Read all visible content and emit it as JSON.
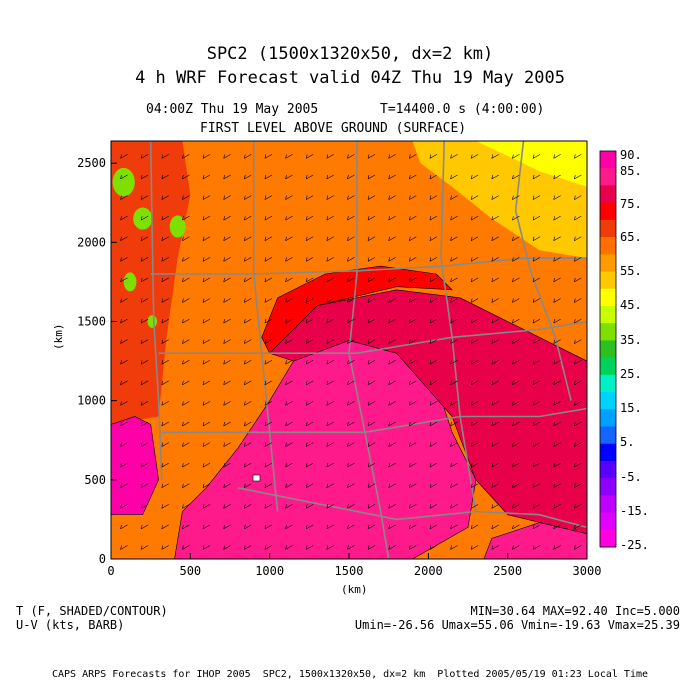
{
  "title": "SPC2 (1500x1320x50, dx=2 km)",
  "subtitle": "4 h WRF Forecast valid 04Z Thu 19 May 2005",
  "time_label": "04:00Z Thu 19 May 2005",
  "time_step": "T=14400.0 s (4:00:00)",
  "level_label": "FIRST LEVEL ABOVE GROUND (SURFACE)",
  "xlabel": "(km)",
  "ylabel": "(km)",
  "var1_label": "T (F, SHADED/CONTOUR)",
  "var2_label": "U-V (kts, BARB)",
  "stats_line1": "MIN=30.64 MAX=92.40 Inc=5.000",
  "stats_line2": "Umin=-26.56 Umax=55.06 Vmin=-19.63 Vmax=25.39",
  "footer": "CAPS ARPS Forecasts for IHOP 2005  SPC2, 1500x1320x50, dx=2 km  Plotted 2005/05/19 01:23 Local Time",
  "chart_data": {
    "type": "heatmap",
    "xlim": [
      0,
      3000
    ],
    "ylim": [
      0,
      2640
    ],
    "x_ticks": [
      0,
      500,
      1000,
      1500,
      2000,
      2500,
      3000
    ],
    "y_ticks": [
      0,
      500,
      1000,
      1500,
      2000,
      2500
    ],
    "x_tick_labels": [
      "0",
      "500",
      "1000",
      "1500",
      "2000",
      "2500",
      "3000"
    ],
    "y_tick_labels": [
      "0",
      "500",
      "1000",
      "1500",
      "2000",
      "2500"
    ],
    "colorbar": {
      "labels": [
        "90.",
        "85.",
        "75.",
        "65.",
        "55.",
        "45.",
        "35.",
        "25.",
        "15.",
        "5.",
        "-5.",
        "-15.",
        "-25."
      ],
      "colors": [
        "#ff00a8",
        "#ff1a8c",
        "#e8004a",
        "#ff0000",
        "#f03c0a",
        "#ff7000",
        "#ff9a00",
        "#ffc800",
        "#ffff00",
        "#c8ff00",
        "#7ee000",
        "#2cc020",
        "#00d25a",
        "#00f0c8",
        "#00d2ff",
        "#00a0ff",
        "#1464ff",
        "#0000ff",
        "#5a00ff",
        "#9000ff",
        "#c000ff",
        "#e000ff",
        "#ff00e0"
      ]
    },
    "regions": [
      {
        "value_band": "85-90",
        "color": "#ff1a8c",
        "polygon_km": [
          [
            1150,
            0
          ],
          [
            1900,
            0
          ],
          [
            2250,
            200
          ],
          [
            2300,
            500
          ],
          [
            2150,
            800
          ],
          [
            2050,
            1100
          ],
          [
            1800,
            1300
          ],
          [
            1500,
            1380
          ],
          [
            1150,
            1250
          ],
          [
            1000,
            1000
          ],
          [
            800,
            700
          ],
          [
            600,
            450
          ],
          [
            450,
            300
          ],
          [
            400,
            0
          ]
        ]
      },
      {
        "value_band": "85-90",
        "color": "#ff1a8c",
        "polygon_km": [
          [
            2350,
            0
          ],
          [
            3000,
            0
          ],
          [
            3000,
            160
          ],
          [
            2700,
            230
          ],
          [
            2400,
            130
          ]
        ]
      },
      {
        "value_band": "80-85",
        "color": "#ff00a8",
        "polygon_km": [
          [
            0,
            280
          ],
          [
            200,
            280
          ],
          [
            300,
            500
          ],
          [
            250,
            850
          ],
          [
            150,
            900
          ],
          [
            0,
            850
          ]
        ]
      },
      {
        "value_band": "75-80",
        "color": "#e8004a",
        "polygon_km": [
          [
            1000,
            1300
          ],
          [
            1300,
            1600
          ],
          [
            1800,
            1700
          ],
          [
            2200,
            1650
          ],
          [
            2600,
            1450
          ],
          [
            2900,
            1300
          ],
          [
            3000,
            1250
          ],
          [
            3000,
            160
          ],
          [
            2500,
            280
          ],
          [
            2300,
            500
          ],
          [
            2150,
            900
          ],
          [
            1800,
            1300
          ],
          [
            1500,
            1380
          ],
          [
            1150,
            1250
          ]
        ]
      },
      {
        "value_band": "70-75",
        "color": "#ff0000",
        "polygon_km": [
          [
            1000,
            1300
          ],
          [
            1300,
            1600
          ],
          [
            1800,
            1720
          ],
          [
            2150,
            1700
          ],
          [
            2050,
            1800
          ],
          [
            1700,
            1850
          ],
          [
            1350,
            1800
          ],
          [
            1050,
            1650
          ],
          [
            950,
            1400
          ]
        ]
      }
    ]
  }
}
